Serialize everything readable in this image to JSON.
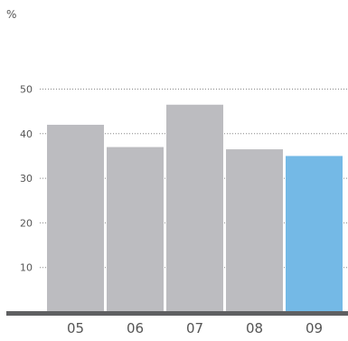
{
  "chart_data": {
    "type": "bar",
    "title": "",
    "unit_label": "%",
    "xlabel": "",
    "ylabel": "",
    "categories": [
      "05",
      "06",
      "07",
      "08",
      "09"
    ],
    "values": [
      42,
      37,
      46.5,
      36.5,
      35
    ],
    "highlight_index": 4,
    "ylim": [
      0,
      55
    ],
    "yticks": [
      10,
      20,
      30,
      40,
      50
    ],
    "grid": "dotted horizontal",
    "colors": {
      "bar": "#bcbcc0",
      "bar_highlight": "#74b9e6",
      "baseline": "#5f6062",
      "grid": "#888888",
      "tick_text": "#555555"
    }
  }
}
